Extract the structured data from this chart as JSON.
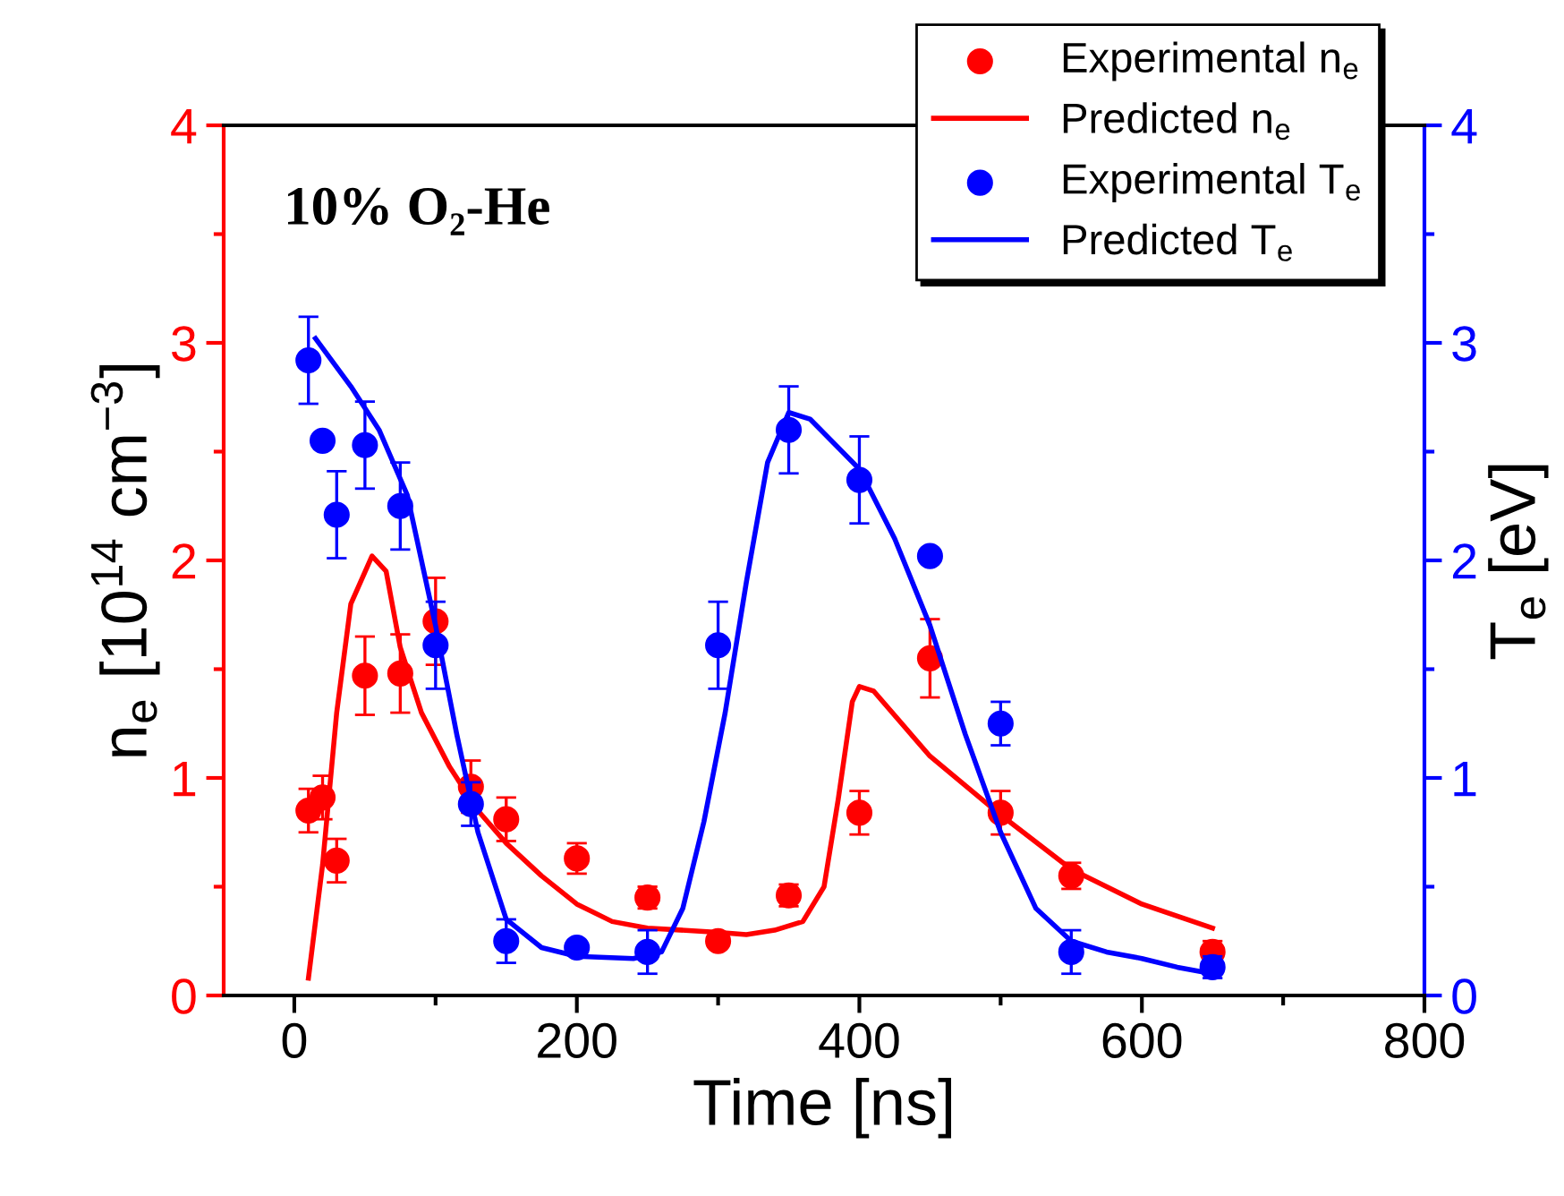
{
  "chart_data": {
    "type": "scatter",
    "xlabel": "Time [ns]",
    "ylabel": "n$_{e}$ [10$^{14}$ cm$^{−3}$]",
    "y2label": "T$_{e}$ [eV]",
    "annotations": [
      "10% O₂-He"
    ],
    "xlim": [
      -50,
      800
    ],
    "xticks": [
      0,
      200,
      400,
      600,
      800
    ],
    "ylim": [
      0,
      4
    ],
    "yticks": [
      0,
      1,
      2,
      3,
      4
    ],
    "y2lim": [
      0,
      4
    ],
    "y2ticks": [
      0,
      1,
      2,
      3,
      4
    ],
    "grid": false,
    "legend": "top right",
    "series": [
      {
        "name": "Experimental n$_{e}$",
        "marker": "circle",
        "color": "#ff0000",
        "x": [
          10,
          20,
          30,
          50,
          75,
          100,
          125,
          150,
          200,
          250,
          300,
          350,
          400,
          450,
          500,
          550,
          650
        ],
        "values": [
          0.85,
          0.91,
          0.62,
          1.47,
          1.48,
          1.72,
          0.96,
          0.81,
          0.63,
          0.45,
          0.25,
          0.46,
          0.84,
          1.55,
          0.84,
          0.55,
          0.2
        ],
        "errors": [
          0.1,
          0.1,
          0.1,
          0.18,
          0.18,
          0.2,
          0.12,
          0.1,
          0.07,
          0.05,
          0.02,
          0.05,
          0.1,
          0.18,
          0.1,
          0.06,
          0.05
        ]
      },
      {
        "name": "Predicted n$_{e}$",
        "type": "line",
        "color": "#ff0000",
        "x": [
          10,
          20,
          30,
          40,
          55,
          65,
          75,
          90,
          110,
          130,
          150,
          175,
          200,
          225,
          250,
          300,
          320,
          340,
          360,
          375,
          385,
          395,
          400,
          410,
          450,
          500,
          550,
          600,
          650
        ],
        "values": [
          0.08,
          0.6,
          1.3,
          1.8,
          2.02,
          1.95,
          1.6,
          1.3,
          1.05,
          0.85,
          0.7,
          0.55,
          0.42,
          0.34,
          0.31,
          0.29,
          0.28,
          0.3,
          0.34,
          0.5,
          0.9,
          1.35,
          1.42,
          1.4,
          1.1,
          0.83,
          0.58,
          0.42,
          0.31
        ]
      },
      {
        "name": "Experimental T$_{e}$",
        "marker": "circle",
        "axis": "y2",
        "color": "#0000ff",
        "x": [
          10,
          20,
          30,
          50,
          75,
          100,
          125,
          150,
          200,
          250,
          300,
          350,
          400,
          450,
          500,
          550,
          650
        ],
        "values": [
          2.92,
          2.55,
          2.21,
          2.53,
          2.25,
          1.61,
          0.88,
          0.25,
          0.22,
          0.2,
          1.61,
          2.6,
          2.37,
          2.02,
          1.25,
          0.2,
          0.13
        ],
        "errors": [
          0.2,
          null,
          0.2,
          0.2,
          0.2,
          0.2,
          0.1,
          0.1,
          null,
          0.1,
          0.2,
          0.2,
          0.2,
          null,
          0.1,
          0.1,
          0.05
        ]
      },
      {
        "name": "Predicted T$_{e}$",
        "type": "line",
        "axis": "y2",
        "color": "#0000ff",
        "x": [
          15,
          40,
          60,
          80,
          100,
          115,
          130,
          150,
          175,
          200,
          240,
          260,
          275,
          290,
          305,
          320,
          335,
          350,
          365,
          400,
          425,
          450,
          475,
          500,
          525,
          550,
          575,
          600,
          625,
          650
        ],
        "values": [
          3.02,
          2.8,
          2.6,
          2.3,
          1.7,
          1.2,
          0.75,
          0.35,
          0.22,
          0.18,
          0.17,
          0.2,
          0.4,
          0.8,
          1.3,
          1.9,
          2.45,
          2.68,
          2.65,
          2.42,
          2.1,
          1.7,
          1.2,
          0.75,
          0.4,
          0.25,
          0.2,
          0.17,
          0.13,
          0.1
        ]
      }
    ]
  }
}
